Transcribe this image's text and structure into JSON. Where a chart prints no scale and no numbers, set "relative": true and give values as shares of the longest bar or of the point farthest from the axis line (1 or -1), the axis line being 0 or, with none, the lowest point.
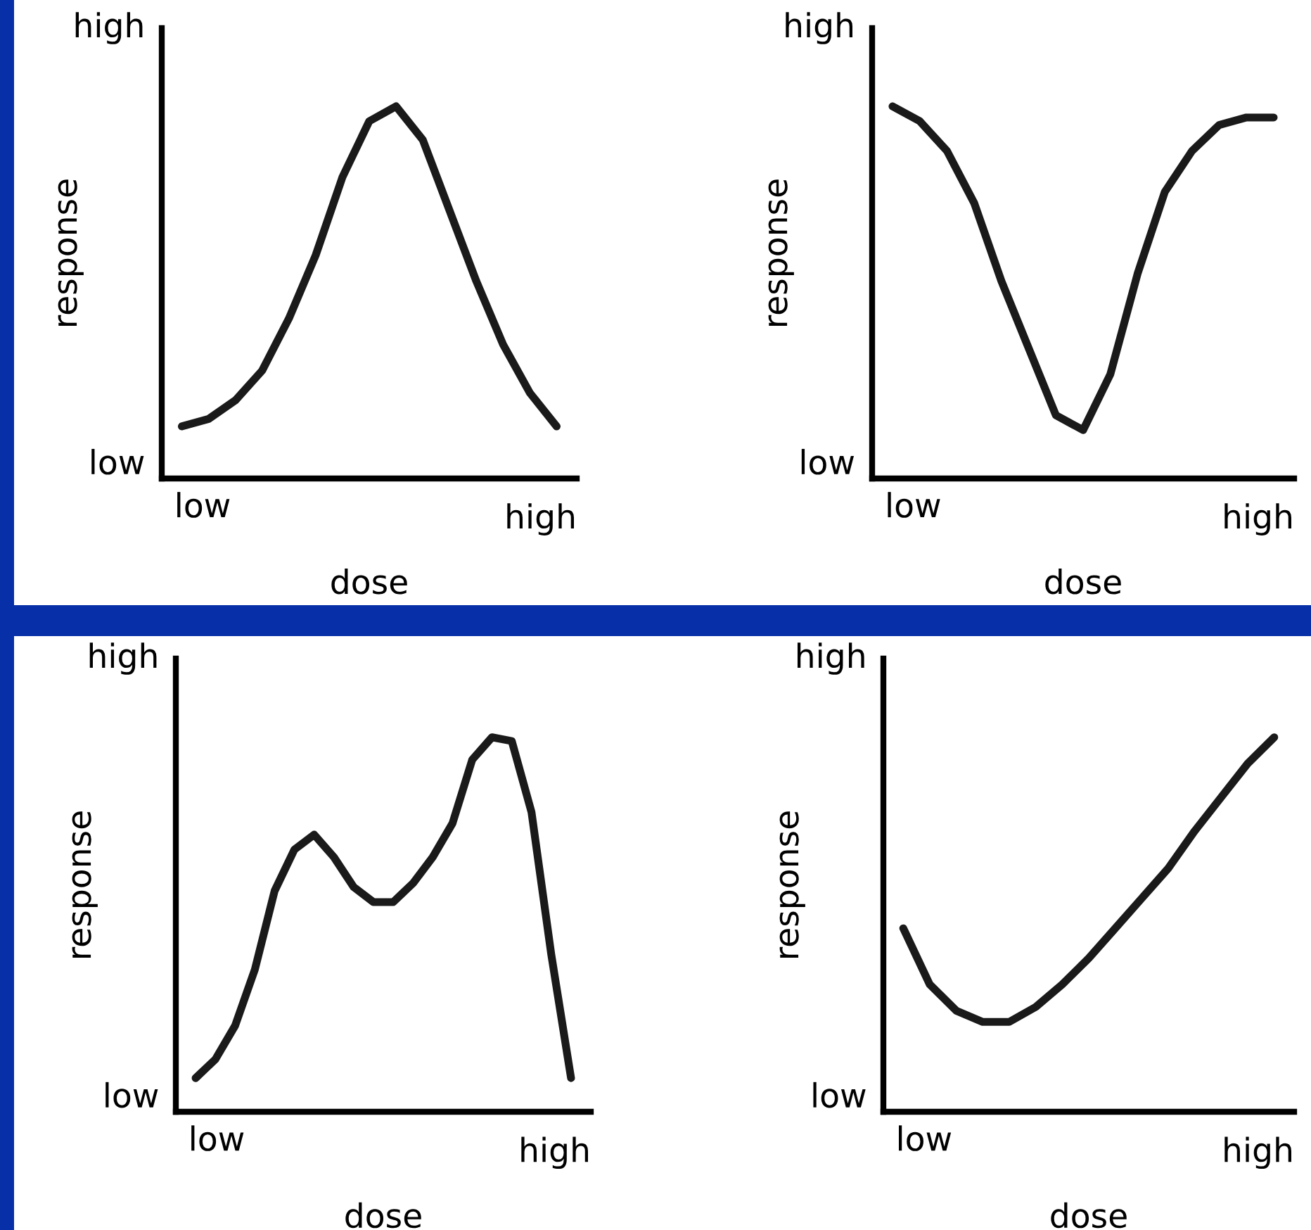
{
  "chart_data": [
    {
      "type": "line",
      "relative": true,
      "xlabel": "dose",
      "ylabel": "response",
      "annotations": [
        "low",
        "high",
        "low",
        "high"
      ],
      "line_style": "solid",
      "categories": [
        null,
        null,
        null,
        null,
        null,
        null,
        null,
        null,
        null,
        null,
        null,
        null,
        null,
        null,
        null
      ],
      "series": [
        {
          "color": "#1a1a1a",
          "values": [
            0.14,
            0.16,
            0.21,
            0.29,
            0.43,
            0.6,
            0.81,
            0.96,
            1,
            0.91,
            0.72,
            0.53,
            0.36,
            0.23,
            0.14
          ]
        }
      ]
    },
    {
      "type": "line",
      "relative": true,
      "xlabel": "dose",
      "ylabel": "response",
      "annotations": [
        "low",
        "high",
        "low",
        "high"
      ],
      "line_style": "solid",
      "categories": [
        null,
        null,
        null,
        null,
        null,
        null,
        null,
        null,
        null,
        null,
        null,
        null,
        null,
        null,
        null
      ],
      "series": [
        {
          "color": "#1a1a1a",
          "values": [
            1,
            0.96,
            0.88,
            0.74,
            0.53,
            0.35,
            0.17,
            0.13,
            0.28,
            0.55,
            0.77,
            0.88,
            0.95,
            0.97,
            0.97
          ]
        }
      ]
    },
    {
      "type": "line",
      "relative": true,
      "xlabel": "dose",
      "ylabel": "response",
      "annotations": [
        "low",
        "high",
        "low",
        "high"
      ],
      "line_style": "solid",
      "categories": [
        null,
        null,
        null,
        null,
        null,
        null,
        null,
        null,
        null,
        null,
        null,
        null,
        null,
        null,
        null,
        null,
        null,
        null,
        null,
        null
      ],
      "series": [
        {
          "color": "#1a1a1a",
          "values": [
            0.09,
            0.14,
            0.23,
            0.38,
            0.59,
            0.7,
            0.74,
            0.68,
            0.6,
            0.56,
            0.56,
            0.61,
            0.68,
            0.77,
            0.94,
            1,
            0.99,
            0.8,
            0.42,
            0.09
          ]
        }
      ]
    },
    {
      "type": "line",
      "relative": true,
      "xlabel": "dose",
      "ylabel": "response",
      "annotations": [
        "low",
        "high",
        "low",
        "high"
      ],
      "line_style": "solid",
      "categories": [
        null,
        null,
        null,
        null,
        null,
        null,
        null,
        null,
        null,
        null,
        null,
        null,
        null,
        null,
        null
      ],
      "series": [
        {
          "color": "#1a1a1a",
          "values": [
            0.49,
            0.34,
            0.27,
            0.24,
            0.24,
            0.28,
            0.34,
            0.41,
            0.49,
            0.57,
            0.65,
            0.75,
            0.84,
            0.93,
            1
          ]
        }
      ]
    }
  ]
}
